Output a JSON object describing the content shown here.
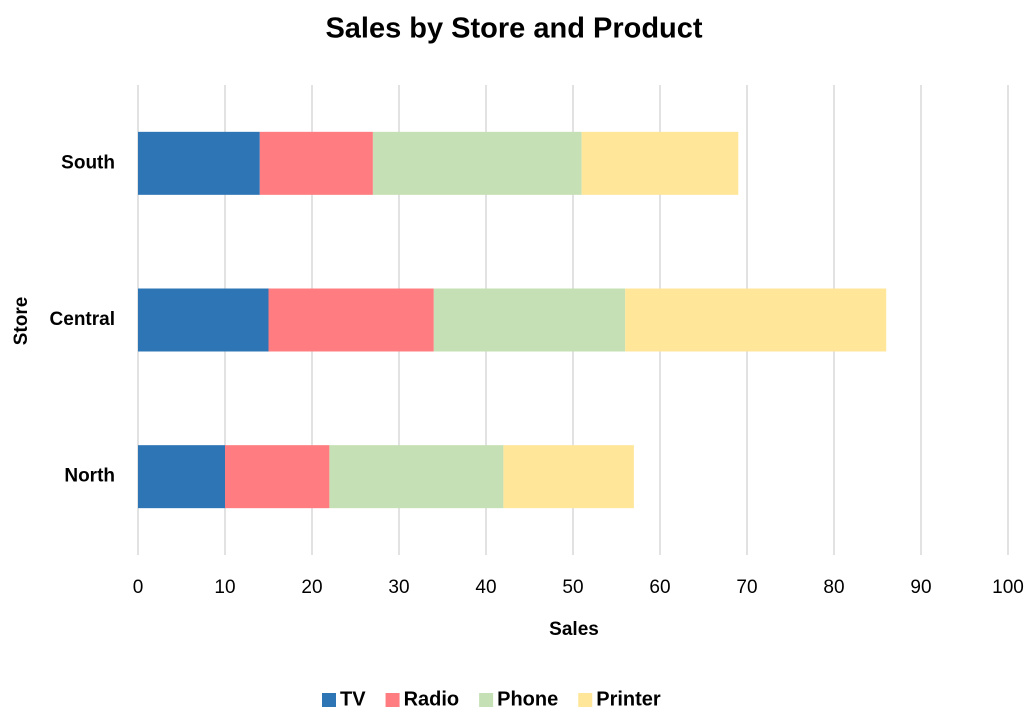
{
  "chart_data": {
    "type": "stacked-bar-horizontal",
    "title": "Sales by Store and Product",
    "x_label": "Sales",
    "y_label": "Store",
    "categories": [
      "North",
      "Central",
      "South"
    ],
    "series": [
      {
        "name": "TV",
        "color": "#2e75b6",
        "values": [
          10,
          15,
          14
        ]
      },
      {
        "name": "Radio",
        "color": "#ff7c80",
        "values": [
          12,
          19,
          13
        ]
      },
      {
        "name": "Phone",
        "color": "#c5e0b4",
        "values": [
          20,
          22,
          24
        ]
      },
      {
        "name": "Printer",
        "color": "#ffe699",
        "values": [
          15,
          30,
          18
        ]
      }
    ],
    "xlim": [
      0,
      100
    ],
    "xticks": [
      0,
      10,
      20,
      30,
      40,
      50,
      60,
      70,
      80,
      90,
      100
    ],
    "grid": true,
    "legend": "bottom"
  }
}
